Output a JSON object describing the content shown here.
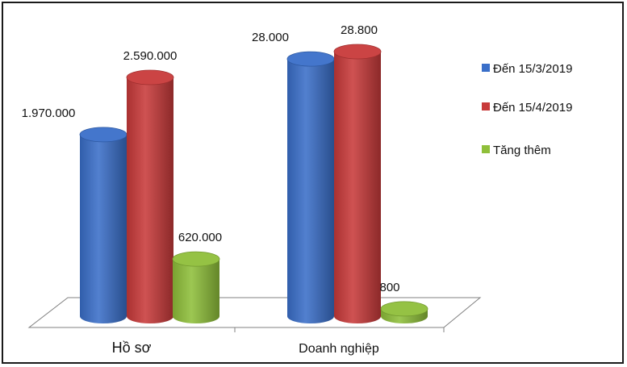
{
  "chart_data": {
    "type": "bar",
    "style": "3d-cylinder",
    "categories": [
      "Hồ sơ",
      "Doanh nghiệp"
    ],
    "series": [
      {
        "name": "Đến 15/3/2019",
        "color": "#3a6fc9",
        "values": [
          1970000,
          28000
        ],
        "labels": [
          "1.970.000",
          "28.000"
        ]
      },
      {
        "name": "Đến 15/4/2019",
        "color": "#c83a3a",
        "values": [
          2590000,
          28800
        ],
        "labels": [
          "2.590.000",
          "28.800"
        ]
      },
      {
        "name": "Tăng thêm",
        "color": "#8fbf3a",
        "values": [
          620000,
          800
        ],
        "labels": [
          "620.000",
          "800"
        ]
      }
    ],
    "legend_position": "right",
    "grid": false,
    "note": "Each category group is scaled independently."
  }
}
